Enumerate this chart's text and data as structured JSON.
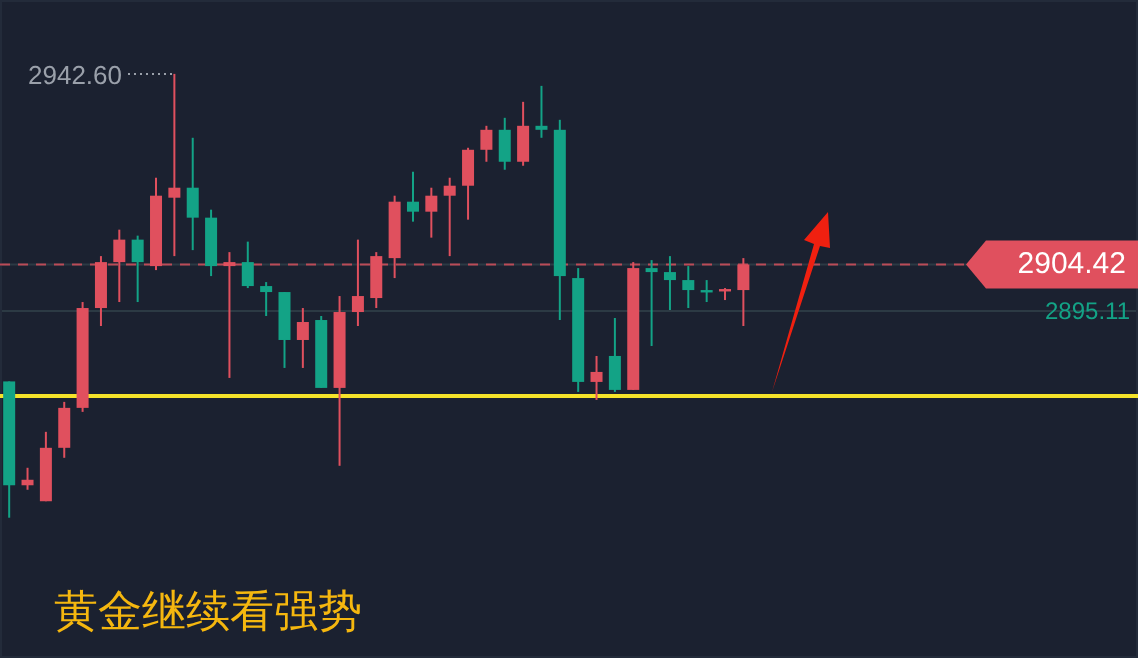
{
  "chart_data": {
    "type": "candlestick",
    "title": "黄金继续看强势",
    "categories": [
      null,
      null,
      null,
      null,
      null,
      null,
      null,
      null,
      null,
      null,
      null,
      null,
      null,
      null,
      null,
      null,
      null,
      null,
      null,
      null,
      null,
      null,
      null,
      null,
      null,
      null,
      null,
      null,
      null,
      null,
      null,
      null,
      null,
      null,
      null,
      null,
      null,
      null,
      null,
      null,
      null,
      null,
      null,
      null,
      null,
      null,
      null,
      null,
      null,
      null,
      null,
      null,
      null,
      null,
      null,
      null,
      null,
      null,
      null,
      null,
      null,
      null
    ],
    "ohlc": [
      [
        2881.0,
        2881.0,
        2853.7,
        2860.2
      ],
      [
        2860.2,
        2863.7,
        2859.3,
        2861.3
      ],
      [
        2857.0,
        2870.9,
        2857.0,
        2867.7
      ],
      [
        2867.7,
        2876.9,
        2865.7,
        2875.7
      ],
      [
        2875.7,
        2896.9,
        2874.9,
        2895.7
      ],
      [
        2895.7,
        2906.1,
        2892.1,
        2904.9
      ],
      [
        2904.9,
        2911.4,
        2896.9,
        2909.4
      ],
      [
        2909.4,
        2910.2,
        2896.9,
        2904.9
      ],
      [
        2904.1,
        2921.8,
        2903.3,
        2918.2
      ],
      [
        2917.8,
        2942.6,
        2906.1,
        2919.8
      ],
      [
        2919.8,
        2929.8,
        2907.3,
        2913.8
      ],
      [
        2913.8,
        2915.4,
        2902.1,
        2904.1
      ],
      [
        2904.1,
        2906.9,
        2881.7,
        2904.9
      ],
      [
        2904.9,
        2909.0,
        2899.7,
        2900.1
      ],
      [
        2900.1,
        2900.9,
        2894.1,
        2898.9
      ],
      [
        2898.9,
        2898.9,
        2883.7,
        2889.3
      ],
      [
        2889.3,
        2895.7,
        2883.7,
        2892.9
      ],
      [
        2893.3,
        2894.1,
        2879.7,
        2879.7
      ],
      [
        2879.7,
        2898.1,
        2864.1,
        2894.9
      ],
      [
        2894.9,
        2909.4,
        2892.1,
        2898.1
      ],
      [
        2897.7,
        2906.9,
        2895.7,
        2906.1
      ],
      [
        2905.7,
        2918.2,
        2901.7,
        2917.0
      ],
      [
        2917.0,
        2923.0,
        2913.0,
        2915.0
      ],
      [
        2915.0,
        2919.8,
        2909.8,
        2918.2
      ],
      [
        2918.2,
        2921.8,
        2906.1,
        2920.2
      ],
      [
        2920.2,
        2927.8,
        2913.4,
        2927.4
      ],
      [
        2927.4,
        2932.2,
        2925.0,
        2931.4
      ],
      [
        2931.4,
        2933.8,
        2923.4,
        2925.0
      ],
      [
        2925.0,
        2937.0,
        2924.2,
        2932.2
      ],
      [
        2932.2,
        2940.2,
        2929.8,
        2931.4
      ],
      [
        2931.4,
        2933.4,
        2893.3,
        2902.1
      ],
      [
        2901.7,
        2903.7,
        2878.9,
        2880.9
      ],
      [
        2880.9,
        2886.1,
        2877.3,
        2882.9
      ],
      [
        2886.1,
        2893.7,
        2878.9,
        2879.3
      ],
      [
        2879.3,
        2904.9,
        2879.3,
        2903.7
      ],
      [
        2903.7,
        2905.3,
        2888.1,
        2902.9
      ],
      [
        2902.9,
        2906.1,
        2895.3,
        2901.3
      ],
      [
        2901.3,
        2904.1,
        2895.7,
        2899.3
      ],
      [
        2899.3,
        2901.3,
        2896.9,
        2899.1
      ],
      [
        2899.3,
        2899.7,
        2897.3,
        2899.5
      ],
      [
        2899.3,
        2905.7,
        2892.1,
        2904.42
      ],
      null,
      null,
      null,
      null,
      null,
      null,
      null,
      null,
      null,
      null,
      null,
      null,
      null,
      null,
      null,
      null,
      null,
      null,
      null,
      null,
      null
    ],
    "colors": [
      "#13a386",
      "#e0505e",
      "#e0505e",
      "#e0505e",
      "#e0505e",
      "#e0505e",
      "#e0505e",
      "#13a386",
      "#e0505e",
      "#e0505e",
      "#13a386",
      "#13a386",
      "#e0505e",
      "#13a386",
      "#13a386",
      "#13a386",
      "#e0505e",
      "#13a386",
      "#e0505e",
      "#e0505e",
      "#e0505e",
      "#e0505e",
      "#13a386",
      "#e0505e",
      "#e0505e",
      "#e0505e",
      "#e0505e",
      "#13a386",
      "#e0505e",
      "#13a386",
      "#13a386",
      "#13a386",
      "#e0505e",
      "#13a386",
      "#e0505e",
      "#13a386",
      "#13a386",
      "#13a386",
      "#13a386",
      "#e0505e",
      "#e0505e",
      null,
      null,
      null,
      null,
      null,
      null,
      null,
      null,
      null,
      null,
      null,
      null,
      null,
      null,
      null,
      null,
      null,
      null,
      null,
      null,
      null
    ],
    "ylim": [
      2825.6,
      2957.4
    ],
    "grid": "y",
    "yticks": [
      {
        "value": 2904.42,
        "label": "2904.42"
      },
      {
        "value": 2895.11,
        "label": "2895.11"
      }
    ],
    "ref_lines": [
      {
        "axis": "y",
        "value": 2904.42,
        "color": "#e0505e",
        "line_style": "dashed"
      },
      {
        "axis": "y",
        "value": 2878.1,
        "color": "#f5e32a",
        "line_style": "solid"
      }
    ],
    "annotations": [
      "2942.60"
    ]
  }
}
